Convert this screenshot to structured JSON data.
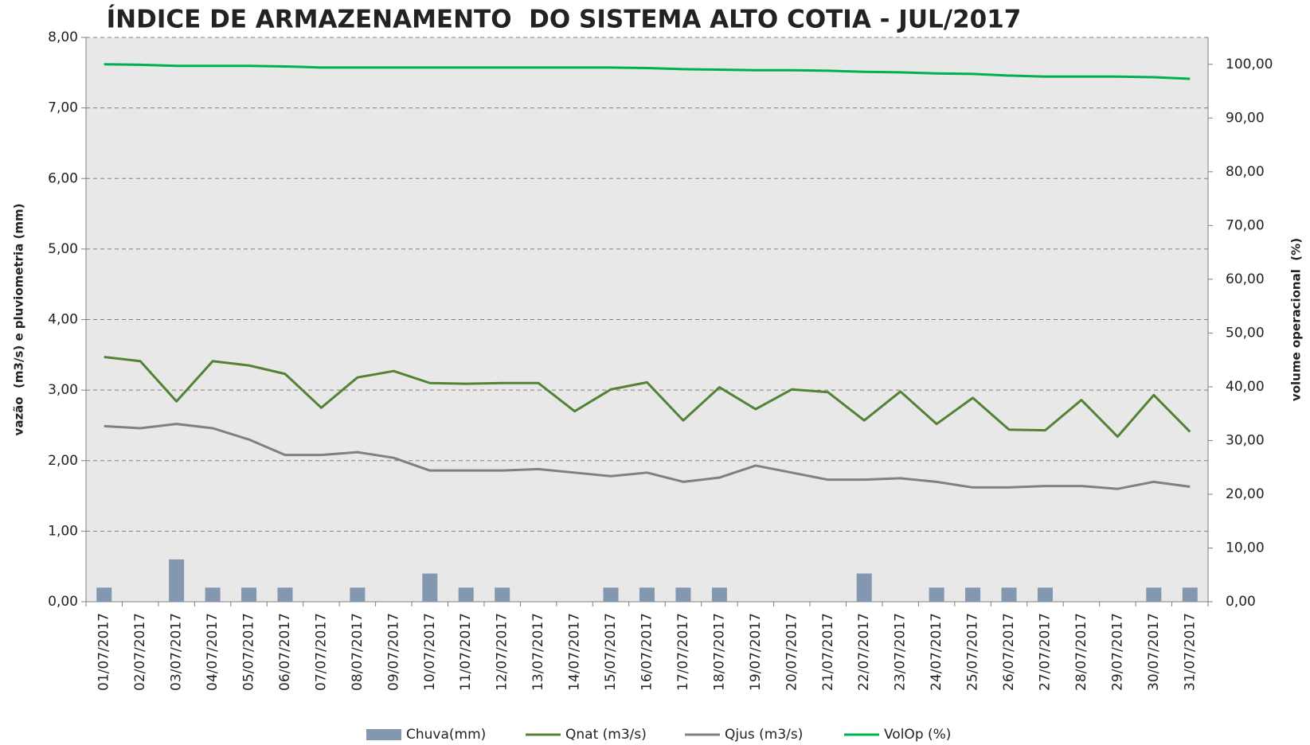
{
  "chart_data": {
    "type": "combo",
    "title": "ÍNDICE DE ARMAZENAMENTO  DO SISTEMA ALTO COTIA - JUL/2017",
    "ylabel": "vazão  (m3/s) e pluviometria (mm)",
    "y2label": "volume operacional  (%)",
    "categories": [
      "01/07/2017",
      "02/07/2017",
      "03/07/2017",
      "04/07/2017",
      "05/07/2017",
      "06/07/2017",
      "07/07/2017",
      "08/07/2017",
      "09/07/2017",
      "10/07/2017",
      "11/07/2017",
      "12/07/2017",
      "13/07/2017",
      "14/07/2017",
      "15/07/2017",
      "16/07/2017",
      "17/07/2017",
      "18/07/2017",
      "19/07/2017",
      "20/07/2017",
      "21/07/2017",
      "22/07/2017",
      "23/07/2017",
      "24/07/2017",
      "25/07/2017",
      "26/07/2017",
      "27/07/2017",
      "28/07/2017",
      "29/07/2017",
      "30/07/2017",
      "31/07/2017"
    ],
    "series": [
      {
        "name": "Chuva(mm)",
        "type": "bar",
        "color": "#8497b0",
        "values": [
          0.2,
          0,
          0.6,
          0.2,
          0.2,
          0.2,
          0,
          0.2,
          0,
          0.4,
          0.2,
          0.2,
          0,
          0,
          0.2,
          0.2,
          0.2,
          0.2,
          0,
          0,
          0,
          0.4,
          0,
          0.2,
          0.2,
          0.2,
          0.2,
          0,
          0,
          0.2,
          0.2
        ]
      },
      {
        "name": "Qnat (m3/s)",
        "type": "line",
        "color": "#548235",
        "values": [
          3.47,
          3.41,
          2.84,
          3.41,
          3.35,
          3.23,
          2.75,
          3.18,
          3.27,
          3.1,
          3.09,
          3.1,
          3.1,
          2.7,
          3.01,
          3.11,
          2.57,
          3.04,
          2.73,
          3.01,
          2.97,
          2.57,
          2.98,
          2.52,
          2.89,
          2.44,
          2.43,
          2.86,
          2.34,
          2.93,
          2.41
        ]
      },
      {
        "name": "Qjus (m3/s)",
        "type": "line",
        "color": "#808080",
        "values": [
          2.49,
          2.46,
          2.52,
          2.46,
          2.3,
          2.08,
          2.08,
          2.12,
          2.04,
          1.86,
          1.86,
          1.86,
          1.88,
          1.83,
          1.78,
          1.83,
          1.7,
          1.76,
          1.93,
          1.83,
          1.73,
          1.73,
          1.75,
          1.7,
          1.62,
          1.62,
          1.64,
          1.64,
          1.6,
          1.7,
          1.63
        ]
      },
      {
        "name": "VolOp (%)",
        "type": "line",
        "axis": "y2",
        "color": "#00b050",
        "values": [
          100.0,
          99.9,
          99.7,
          99.7,
          99.7,
          99.6,
          99.4,
          99.4,
          99.4,
          99.4,
          99.4,
          99.4,
          99.4,
          99.4,
          99.4,
          99.3,
          99.1,
          99.0,
          98.9,
          98.9,
          98.8,
          98.6,
          98.5,
          98.3,
          98.2,
          97.9,
          97.7,
          97.7,
          97.7,
          97.6,
          97.3
        ]
      }
    ],
    "ylim": [
      0,
      8
    ],
    "yticks": [
      {
        "value": 0,
        "label": "0,00"
      },
      {
        "value": 1,
        "label": "1,00"
      },
      {
        "value": 2,
        "label": "2,00"
      },
      {
        "value": 3,
        "label": "3,00"
      },
      {
        "value": 4,
        "label": "4,00"
      },
      {
        "value": 5,
        "label": "5,00"
      },
      {
        "value": 6,
        "label": "6,00"
      },
      {
        "value": 7,
        "label": "7,00"
      },
      {
        "value": 8,
        "label": "8,00"
      }
    ],
    "y2lim": [
      0,
      105
    ],
    "y2ticks": [
      {
        "value": 0,
        "label": "0,00"
      },
      {
        "value": 10,
        "label": "10,00"
      },
      {
        "value": 20,
        "label": "20,00"
      },
      {
        "value": 30,
        "label": "30,00"
      },
      {
        "value": 40,
        "label": "40,00"
      },
      {
        "value": 50,
        "label": "50,00"
      },
      {
        "value": 60,
        "label": "60,00"
      },
      {
        "value": 70,
        "label": "70,00"
      },
      {
        "value": 80,
        "label": "80,00"
      },
      {
        "value": 90,
        "label": "90,00"
      },
      {
        "value": 100,
        "label": "100,00"
      }
    ],
    "grid": true,
    "legend": "bottom"
  }
}
